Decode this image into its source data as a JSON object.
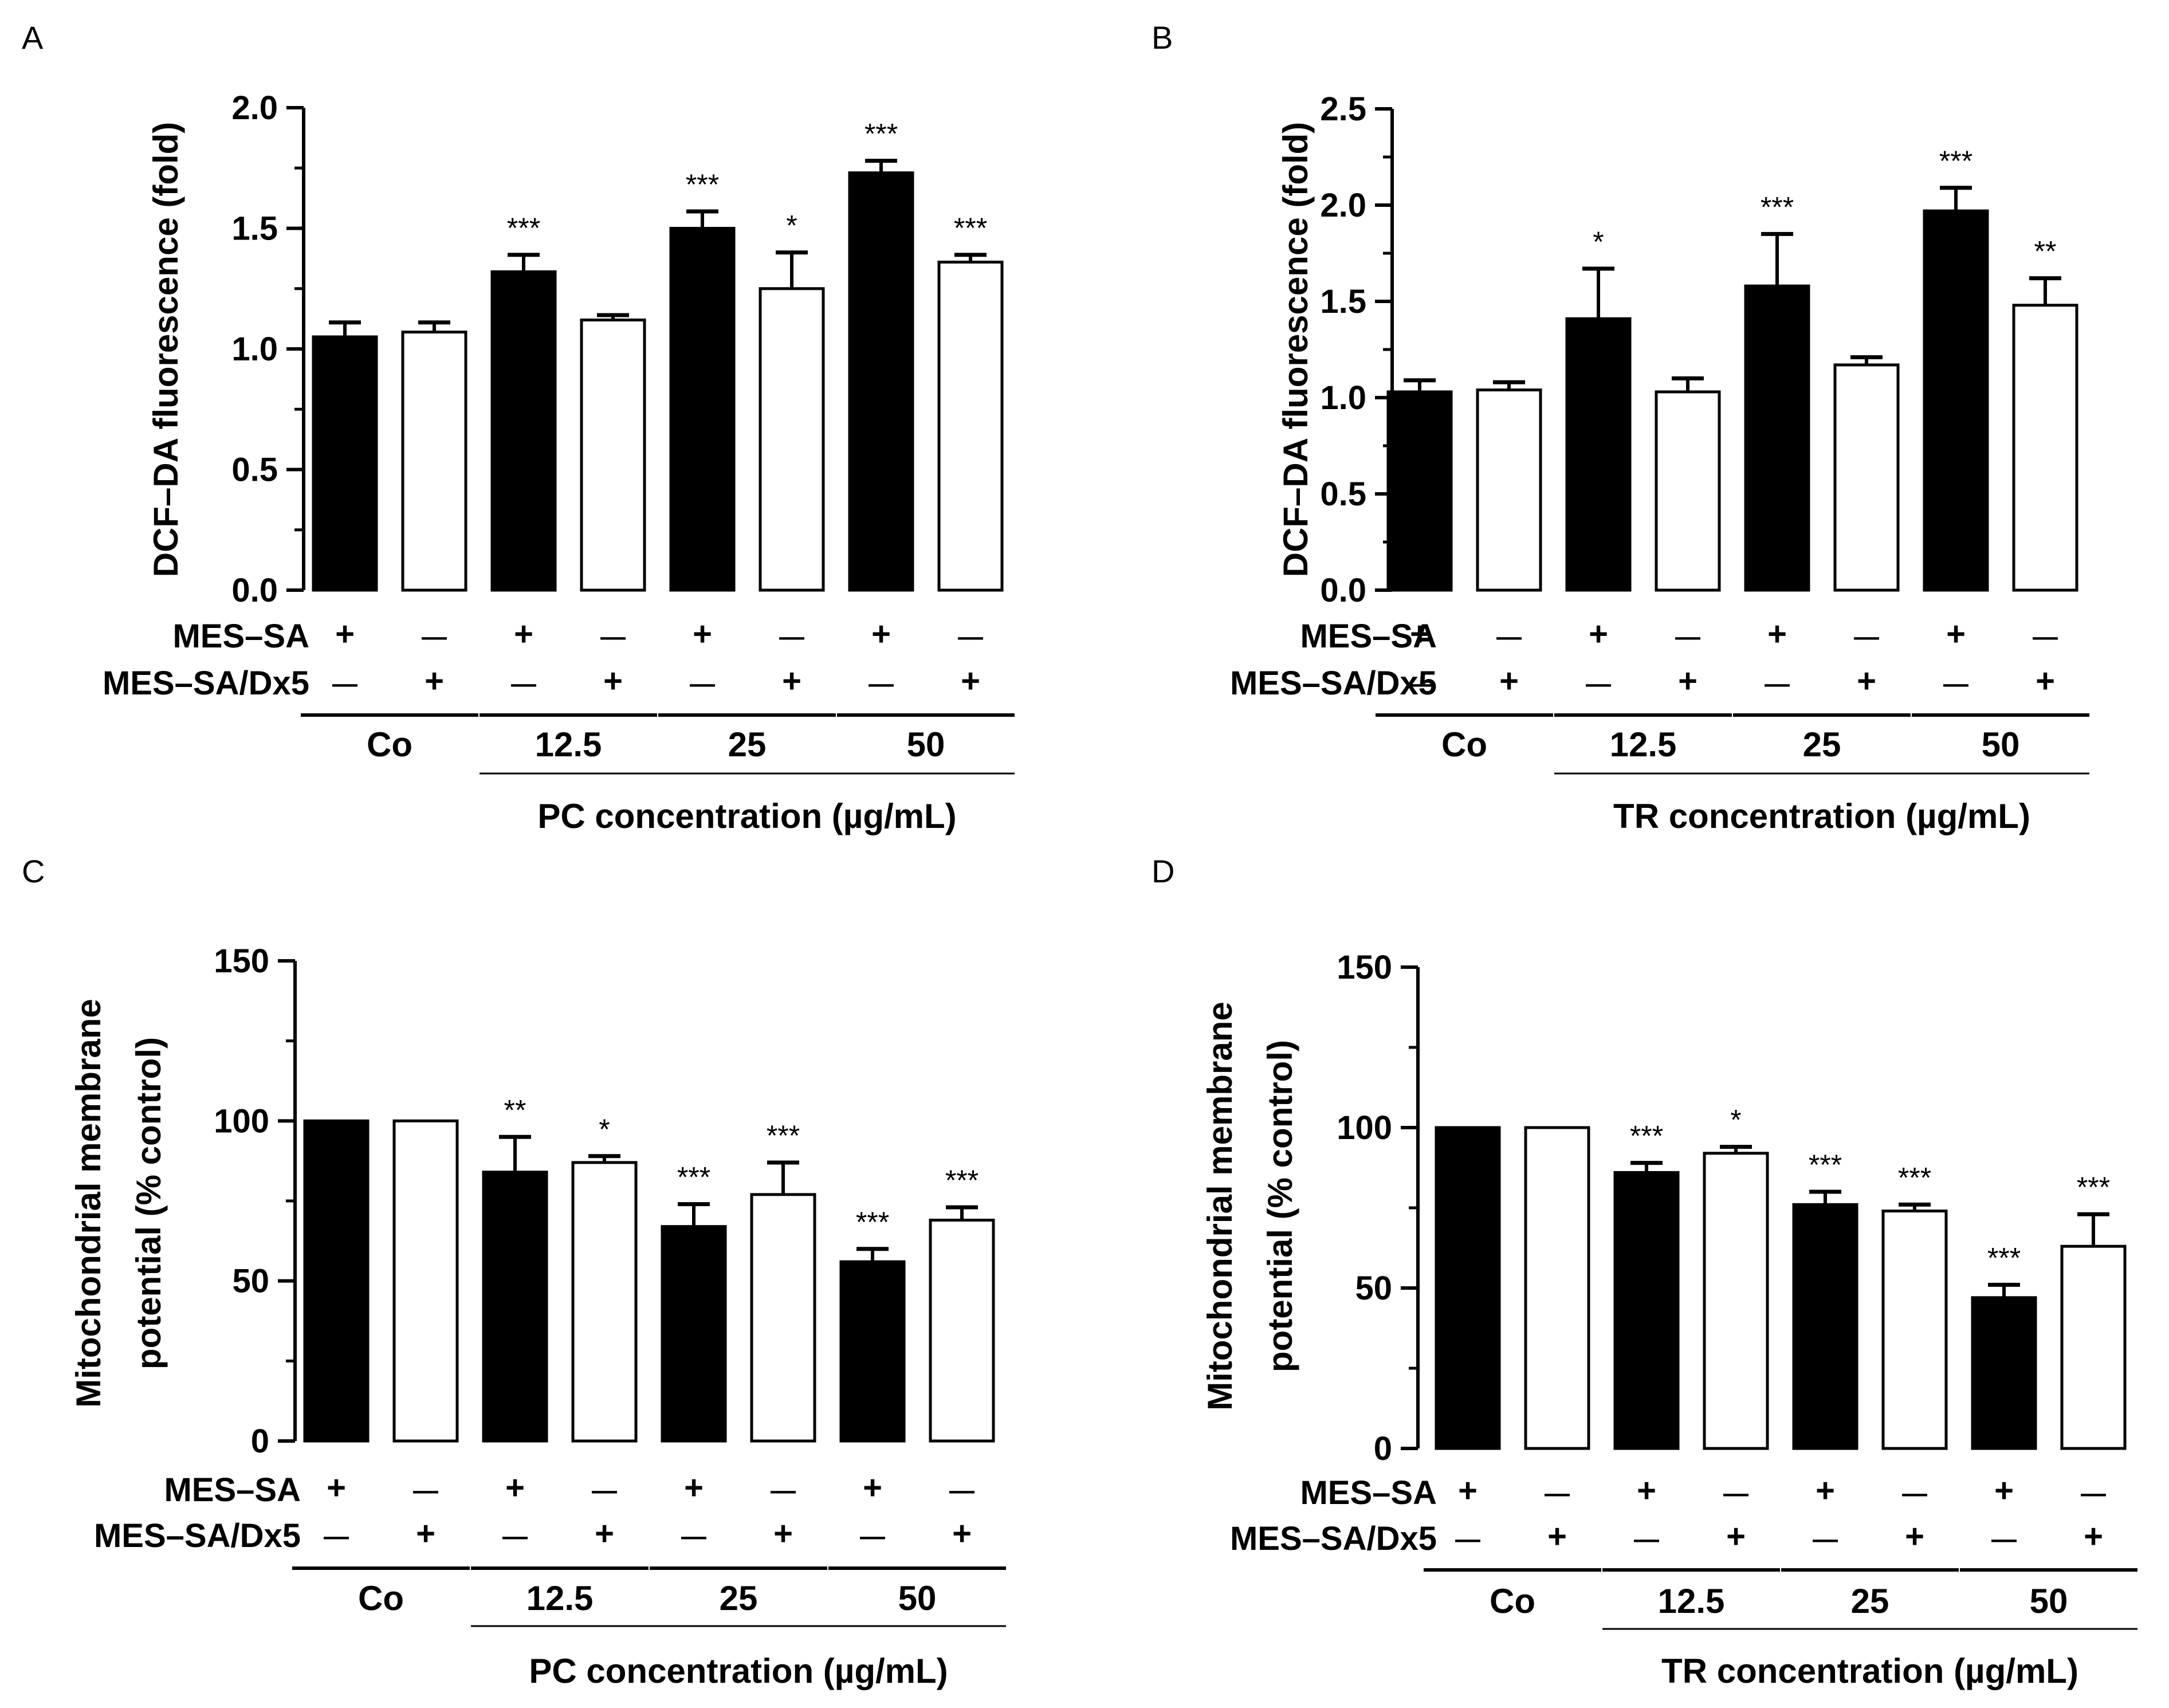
{
  "chart_data": [
    {
      "panel": "A",
      "type": "bar",
      "ylabel": "DCF–DA fluorescence (fold)",
      "ylim": [
        0,
        2.0
      ],
      "yticks": [
        "0.0",
        "0.5",
        "1.0",
        "1.5",
        "2.0"
      ],
      "bars": [
        {
          "value": 1.05,
          "error": 0.06,
          "fill": "black",
          "sig": ""
        },
        {
          "value": 1.07,
          "error": 0.04,
          "fill": "white",
          "sig": ""
        },
        {
          "value": 1.32,
          "error": 0.07,
          "fill": "black",
          "sig": "***"
        },
        {
          "value": 1.12,
          "error": 0.02,
          "fill": "white",
          "sig": ""
        },
        {
          "value": 1.5,
          "error": 0.07,
          "fill": "black",
          "sig": "***"
        },
        {
          "value": 1.25,
          "error": 0.15,
          "fill": "white",
          "sig": "*"
        },
        {
          "value": 1.73,
          "error": 0.05,
          "fill": "black",
          "sig": "***"
        },
        {
          "value": 1.36,
          "error": 0.03,
          "fill": "white",
          "sig": "***"
        }
      ],
      "row1_label": "MES–SA",
      "row2_label": "MES–SA/Dx5",
      "row1_signs": [
        "+",
        "—",
        "+",
        "—",
        "+",
        "—",
        "+",
        "—"
      ],
      "row2_signs": [
        "—",
        "+",
        "—",
        "+",
        "—",
        "+",
        "—",
        "+"
      ],
      "groups": [
        "Co",
        "12.5",
        "25",
        "50"
      ],
      "xlabel": "PC concentration (µg/mL)"
    },
    {
      "panel": "B",
      "type": "bar",
      "ylabel": "DCF–DA fluorescence (fold)",
      "ylim": [
        0,
        2.5
      ],
      "yticks": [
        "0.0",
        "0.5",
        "1.0",
        "1.5",
        "2.0",
        "2.5"
      ],
      "bars": [
        {
          "value": 1.03,
          "error": 0.06,
          "fill": "black",
          "sig": ""
        },
        {
          "value": 1.04,
          "error": 0.04,
          "fill": "white",
          "sig": ""
        },
        {
          "value": 1.41,
          "error": 0.26,
          "fill": "black",
          "sig": "*"
        },
        {
          "value": 1.03,
          "error": 0.07,
          "fill": "white",
          "sig": ""
        },
        {
          "value": 1.58,
          "error": 0.27,
          "fill": "black",
          "sig": "***"
        },
        {
          "value": 1.17,
          "error": 0.04,
          "fill": "white",
          "sig": ""
        },
        {
          "value": 1.97,
          "error": 0.12,
          "fill": "black",
          "sig": "***"
        },
        {
          "value": 1.48,
          "error": 0.14,
          "fill": "white",
          "sig": "**"
        }
      ],
      "row1_label": "MES–SA",
      "row2_label": "MES–SA/Dx5",
      "row1_signs": [
        "+",
        "—",
        "+",
        "—",
        "+",
        "—",
        "+",
        "—"
      ],
      "row2_signs": [
        "—",
        "+",
        "—",
        "+",
        "—",
        "+",
        "—",
        "+"
      ],
      "groups": [
        "Co",
        "12.5",
        "25",
        "50"
      ],
      "xlabel": "TR concentration (µg/mL)"
    },
    {
      "panel": "C",
      "type": "bar",
      "ylabel": "Mitochondrial membrane",
      "ylabel2": "potential (% control)",
      "ylim": [
        0,
        150
      ],
      "yticks": [
        "0",
        "50",
        "100",
        "150"
      ],
      "bars": [
        {
          "value": 100,
          "error": 0,
          "fill": "black",
          "sig": ""
        },
        {
          "value": 100,
          "error": 0,
          "fill": "white",
          "sig": ""
        },
        {
          "value": 84,
          "error": 11,
          "fill": "black",
          "sig": "**"
        },
        {
          "value": 87,
          "error": 2,
          "fill": "white",
          "sig": "*"
        },
        {
          "value": 67,
          "error": 7,
          "fill": "black",
          "sig": "***"
        },
        {
          "value": 77,
          "error": 10,
          "fill": "white",
          "sig": "***"
        },
        {
          "value": 56,
          "error": 4,
          "fill": "black",
          "sig": "***"
        },
        {
          "value": 69,
          "error": 4,
          "fill": "white",
          "sig": "***"
        }
      ],
      "row1_label": "MES–SA",
      "row2_label": "MES–SA/Dx5",
      "row1_signs": [
        "+",
        "—",
        "+",
        "—",
        "+",
        "—",
        "+",
        "—"
      ],
      "row2_signs": [
        "—",
        "+",
        "—",
        "+",
        "—",
        "+",
        "—",
        "+"
      ],
      "groups": [
        "Co",
        "12.5",
        "25",
        "50"
      ],
      "xlabel": "PC concentration (µg/mL)"
    },
    {
      "panel": "D",
      "type": "bar",
      "ylabel": "Mitochondrial membrane",
      "ylabel2": "potential (% control)",
      "ylim": [
        0,
        150
      ],
      "yticks": [
        "0",
        "50",
        "100",
        "150"
      ],
      "bars": [
        {
          "value": 100,
          "error": 0,
          "fill": "black",
          "sig": ""
        },
        {
          "value": 100,
          "error": 0,
          "fill": "white",
          "sig": ""
        },
        {
          "value": 86,
          "error": 3,
          "fill": "black",
          "sig": "***"
        },
        {
          "value": 92,
          "error": 2,
          "fill": "white",
          "sig": "*"
        },
        {
          "value": 76,
          "error": 4,
          "fill": "black",
          "sig": "***"
        },
        {
          "value": 74,
          "error": 2,
          "fill": "white",
          "sig": "***"
        },
        {
          "value": 47,
          "error": 4,
          "fill": "black",
          "sig": "***"
        },
        {
          "value": 63,
          "error": 10,
          "fill": "white",
          "sig": "***"
        }
      ],
      "row1_label": "MES–SA",
      "row2_label": "MES–SA/Dx5",
      "row1_signs": [
        "+",
        "—",
        "+",
        "—",
        "+",
        "—",
        "+",
        "—"
      ],
      "row2_signs": [
        "—",
        "+",
        "—",
        "+",
        "—",
        "+",
        "—",
        "+"
      ],
      "groups": [
        "Co",
        "12.5",
        "25",
        "50"
      ],
      "xlabel": "TR concentration (µg/mL)"
    }
  ]
}
